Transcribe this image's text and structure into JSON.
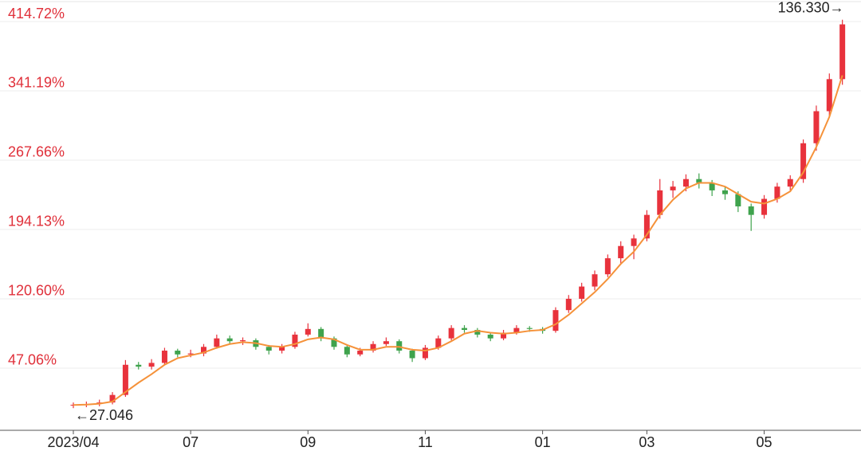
{
  "chart_data": {
    "type": "candlestick",
    "categories": [
      "2023/04",
      null,
      null,
      null,
      null,
      null,
      null,
      null,
      null,
      "07",
      null,
      null,
      null,
      null,
      null,
      null,
      null,
      null,
      "09",
      null,
      null,
      null,
      null,
      null,
      null,
      null,
      null,
      "11",
      null,
      null,
      null,
      null,
      null,
      null,
      null,
      null,
      "01",
      null,
      null,
      null,
      null,
      null,
      null,
      null,
      "03",
      null,
      null,
      null,
      null,
      null,
      null,
      null,
      null,
      "05",
      null,
      null,
      null,
      null,
      null,
      null
    ],
    "open": [
      0,
      0.6,
      1.4,
      3,
      11,
      43,
      41,
      45,
      58,
      54,
      55,
      62,
      71,
      68,
      69,
      62,
      58,
      62,
      75,
      81,
      71,
      62,
      54,
      58,
      65,
      68,
      58,
      50,
      61,
      71,
      82,
      80,
      75,
      71,
      77,
      82,
      81,
      79,
      101,
      113,
      126,
      139,
      156,
      169,
      177,
      202,
      228,
      232,
      240,
      236,
      228,
      224,
      211,
      202,
      219,
      232,
      240,
      278,
      312,
      346
    ],
    "high": [
      3,
      4,
      6,
      14,
      48,
      46,
      49,
      61,
      60,
      59,
      65,
      75,
      74,
      72,
      71,
      64,
      65,
      78,
      87,
      83,
      73,
      64,
      61,
      68,
      72,
      70,
      60,
      64,
      74,
      85,
      85,
      82,
      77,
      80,
      85,
      84,
      83,
      104,
      117,
      130,
      143,
      160,
      174,
      181,
      207,
      240,
      238,
      245,
      246,
      239,
      232,
      227,
      214,
      223,
      236,
      244,
      282,
      318,
      352,
      409
    ],
    "low": [
      -3,
      -2,
      -1,
      1,
      9,
      38,
      38,
      43,
      51,
      51,
      52,
      60,
      65,
      64,
      59,
      54,
      55,
      60,
      73,
      68,
      59,
      51,
      52,
      56,
      63,
      55,
      46,
      48,
      59,
      69,
      77,
      72,
      68,
      69,
      75,
      78,
      76,
      77,
      98,
      110,
      122,
      136,
      150,
      155,
      174,
      198,
      220,
      227,
      230,
      222,
      218,
      205,
      185,
      198,
      215,
      228,
      236,
      270,
      305,
      340
    ],
    "close": [
      0.6,
      1.4,
      3,
      11,
      43,
      41,
      45,
      58,
      54,
      55,
      62,
      71,
      68,
      69,
      62,
      58,
      62,
      75,
      81,
      71,
      62,
      54,
      58,
      65,
      68,
      58,
      50,
      61,
      71,
      82,
      80,
      75,
      71,
      77,
      82,
      81,
      79,
      101,
      113,
      126,
      139,
      156,
      169,
      177,
      202,
      228,
      232,
      240,
      236,
      228,
      224,
      211,
      202,
      219,
      232,
      240,
      278,
      312,
      346,
      404.1
    ],
    "ma": [
      0.3,
      0.8,
      1.7,
      4,
      14,
      24,
      33,
      43,
      50,
      53,
      56,
      61,
      65,
      67,
      66,
      63,
      62,
      65,
      70,
      72,
      70,
      64,
      59,
      59,
      62,
      62,
      59,
      58,
      61,
      68,
      76,
      79,
      77,
      76,
      77,
      79,
      80,
      86,
      96,
      108,
      120,
      134,
      150,
      163,
      181,
      202,
      218,
      230,
      236,
      236,
      232,
      224,
      216,
      214,
      219,
      227,
      247,
      274,
      306,
      350
    ],
    "up_color": "#e8323c",
    "down_color": "#3fa34d",
    "ma_color": "#f5923a",
    "ylim": [
      -26.5,
      427.4
    ],
    "yticks": [
      {
        "value": 47.06,
        "label": "47.06%"
      },
      {
        "value": 120.6,
        "label": "120.60%"
      },
      {
        "value": 194.13,
        "label": "194.13%"
      },
      {
        "value": 267.66,
        "label": "267.66%"
      },
      {
        "value": 341.19,
        "label": "341.19%"
      },
      {
        "value": 414.72,
        "label": "414.72%"
      }
    ],
    "grid": true,
    "annotations": [
      "136.330→",
      "←27.046"
    ]
  }
}
